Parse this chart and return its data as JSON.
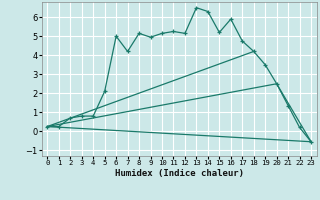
{
  "xlabel": "Humidex (Indice chaleur)",
  "background_color": "#cce8e8",
  "grid_color": "#ffffff",
  "line_color": "#1a7a6a",
  "xlim": [
    -0.5,
    23.5
  ],
  "ylim": [
    -1.3,
    6.8
  ],
  "xticks": [
    0,
    1,
    2,
    3,
    4,
    5,
    6,
    7,
    8,
    9,
    10,
    11,
    12,
    13,
    14,
    15,
    16,
    17,
    18,
    19,
    20,
    21,
    22,
    23
  ],
  "yticks": [
    -1,
    0,
    1,
    2,
    3,
    4,
    5,
    6
  ],
  "series0_x": [
    0,
    1,
    2,
    3,
    4,
    5,
    6,
    7,
    8,
    9,
    10,
    11,
    12,
    13,
    14,
    15,
    16,
    17,
    18,
    19,
    20,
    21,
    22,
    23
  ],
  "series0_y": [
    0.25,
    0.25,
    0.7,
    0.8,
    0.8,
    2.1,
    5.0,
    4.2,
    5.15,
    4.95,
    5.15,
    5.25,
    5.15,
    6.5,
    6.3,
    5.2,
    5.9,
    4.75,
    4.2,
    3.5,
    2.5,
    1.35,
    0.2,
    -0.55
  ],
  "series1_x": [
    0,
    18
  ],
  "series1_y": [
    0.25,
    4.2
  ],
  "series2_x": [
    0,
    20,
    23
  ],
  "series2_y": [
    0.25,
    2.5,
    -0.55
  ],
  "series3_x": [
    0,
    23
  ],
  "series3_y": [
    0.25,
    -0.55
  ]
}
